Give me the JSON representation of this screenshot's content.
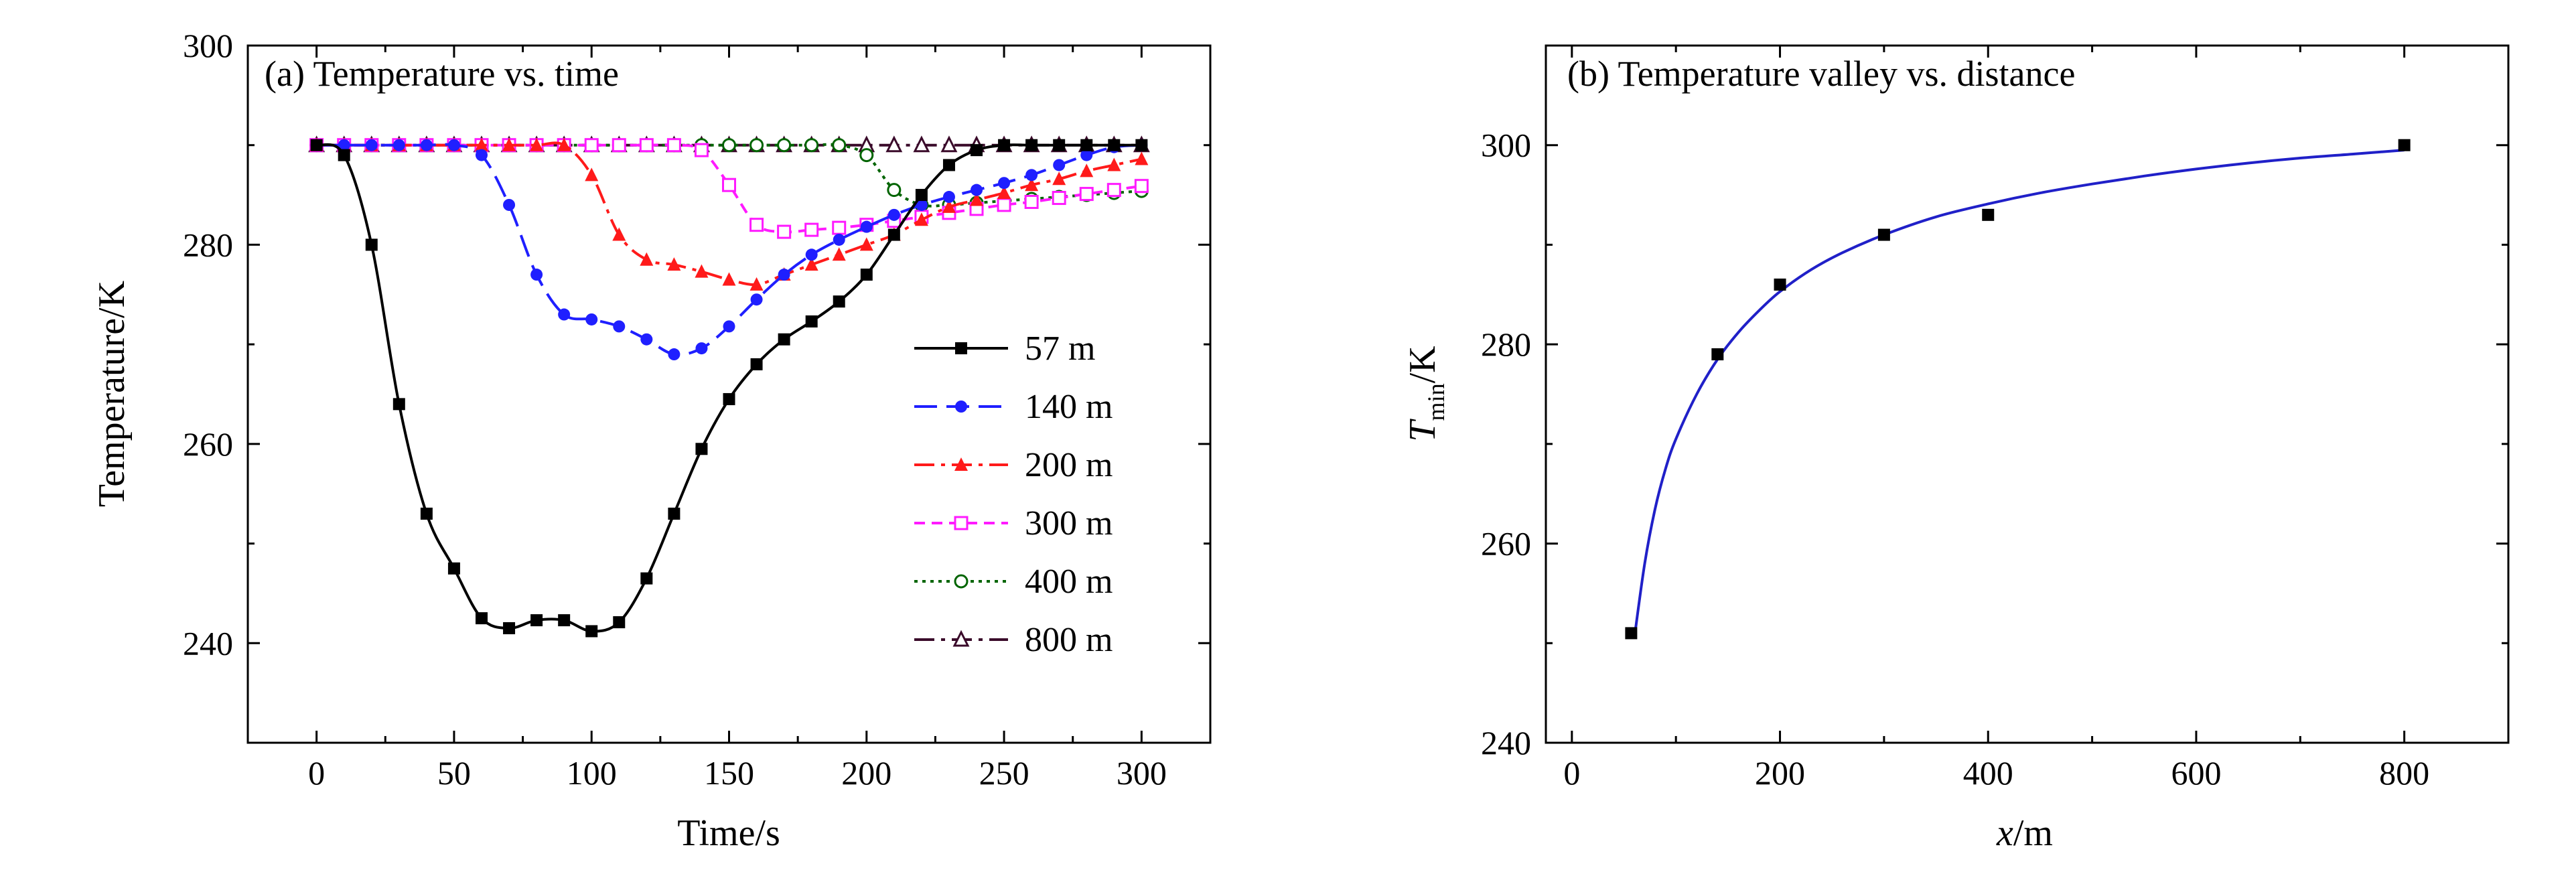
{
  "chart_data": [
    {
      "type": "line",
      "title": "(a) Temperature vs. time",
      "xlabel": "Time/s",
      "ylabel": "Temperature/K",
      "xlim": [
        -25,
        325
      ],
      "ylim": [
        230,
        300
      ],
      "xticks": [
        0,
        50,
        100,
        150,
        200,
        250,
        300
      ],
      "yticks": [
        240,
        260,
        280,
        300
      ],
      "legend_position": "right-middle",
      "series": [
        {
          "name": "57 m",
          "color": "#000000",
          "marker": "square-filled",
          "dash": "solid",
          "points": [
            [
              0,
              290
            ],
            [
              10,
              289
            ],
            [
              20,
              280
            ],
            [
              30,
              264
            ],
            [
              40,
              253
            ],
            [
              50,
              247.5
            ],
            [
              60,
              242.5
            ],
            [
              70,
              241.5
            ],
            [
              80,
              242.3
            ],
            [
              90,
              242.3
            ],
            [
              100,
              241.2
            ],
            [
              110,
              242.1
            ],
            [
              120,
              246.5
            ],
            [
              130,
              253
            ],
            [
              140,
              259.5
            ],
            [
              150,
              264.5
            ],
            [
              160,
              268
            ],
            [
              170,
              270.5
            ],
            [
              180,
              272.3
            ],
            [
              190,
              274.3
            ],
            [
              200,
              277
            ],
            [
              210,
              281
            ],
            [
              220,
              285
            ],
            [
              230,
              288
            ],
            [
              240,
              289.5
            ],
            [
              250,
              290
            ],
            [
              260,
              290
            ],
            [
              270,
              290
            ],
            [
              280,
              290
            ],
            [
              290,
              290
            ],
            [
              300,
              290
            ]
          ]
        },
        {
          "name": "140 m",
          "color": "#1f1fff",
          "marker": "circle-filled",
          "dash": "long-dash",
          "points": [
            [
              0,
              290
            ],
            [
              10,
              290
            ],
            [
              20,
              290
            ],
            [
              30,
              290
            ],
            [
              40,
              290
            ],
            [
              50,
              290
            ],
            [
              60,
              289
            ],
            [
              70,
              284
            ],
            [
              80,
              277
            ],
            [
              90,
              273
            ],
            [
              100,
              272.5
            ],
            [
              110,
              271.8
            ],
            [
              120,
              270.5
            ],
            [
              130,
              269
            ],
            [
              140,
              269.6
            ],
            [
              150,
              271.8
            ],
            [
              160,
              274.5
            ],
            [
              170,
              277
            ],
            [
              180,
              279
            ],
            [
              190,
              280.5
            ],
            [
              200,
              281.8
            ],
            [
              210,
              283
            ],
            [
              220,
              284
            ],
            [
              230,
              284.8
            ],
            [
              240,
              285.5
            ],
            [
              250,
              286.2
            ],
            [
              260,
              287
            ],
            [
              270,
              288
            ],
            [
              280,
              289
            ],
            [
              290,
              289.8
            ],
            [
              300,
              290
            ]
          ]
        },
        {
          "name": "200 m",
          "color": "#ff1a1a",
          "marker": "triangle-filled",
          "dash": "dash-dot",
          "points": [
            [
              0,
              290
            ],
            [
              10,
              290
            ],
            [
              20,
              290
            ],
            [
              30,
              290
            ],
            [
              40,
              290
            ],
            [
              50,
              290
            ],
            [
              60,
              290
            ],
            [
              70,
              290
            ],
            [
              80,
              290
            ],
            [
              90,
              290
            ],
            [
              100,
              287
            ],
            [
              110,
              281
            ],
            [
              120,
              278.5
            ],
            [
              130,
              278
            ],
            [
              140,
              277.3
            ],
            [
              150,
              276.5
            ],
            [
              160,
              276
            ],
            [
              170,
              277
            ],
            [
              180,
              278
            ],
            [
              190,
              279
            ],
            [
              200,
              280
            ],
            [
              210,
              281
            ],
            [
              220,
              282.5
            ],
            [
              230,
              283.8
            ],
            [
              240,
              284.5
            ],
            [
              250,
              285.2
            ],
            [
              260,
              286
            ],
            [
              270,
              286.6
            ],
            [
              280,
              287.4
            ],
            [
              290,
              288
            ],
            [
              300,
              288.6
            ]
          ]
        },
        {
          "name": "300 m",
          "color": "#ff1aff",
          "marker": "square-open",
          "dash": "short-dash",
          "points": [
            [
              0,
              290
            ],
            [
              10,
              290
            ],
            [
              20,
              290
            ],
            [
              30,
              290
            ],
            [
              40,
              290
            ],
            [
              50,
              290
            ],
            [
              60,
              290
            ],
            [
              70,
              290
            ],
            [
              80,
              290
            ],
            [
              90,
              290
            ],
            [
              100,
              290
            ],
            [
              110,
              290
            ],
            [
              120,
              290
            ],
            [
              130,
              290
            ],
            [
              140,
              289.5
            ],
            [
              150,
              286
            ],
            [
              160,
              282
            ],
            [
              170,
              281.3
            ],
            [
              180,
              281.5
            ],
            [
              190,
              281.7
            ],
            [
              200,
              282
            ],
            [
              210,
              282.4
            ],
            [
              220,
              282.8
            ],
            [
              230,
              283.2
            ],
            [
              240,
              283.6
            ],
            [
              250,
              284
            ],
            [
              260,
              284.3
            ],
            [
              270,
              284.7
            ],
            [
              280,
              285.1
            ],
            [
              290,
              285.5
            ],
            [
              300,
              285.9
            ]
          ]
        },
        {
          "name": "400 m",
          "color": "#006400",
          "marker": "circle-open",
          "dash": "dotted",
          "points": [
            [
              0,
              290
            ],
            [
              10,
              290
            ],
            [
              20,
              290
            ],
            [
              30,
              290
            ],
            [
              40,
              290
            ],
            [
              50,
              290
            ],
            [
              60,
              290
            ],
            [
              70,
              290
            ],
            [
              80,
              290
            ],
            [
              90,
              290
            ],
            [
              100,
              290
            ],
            [
              110,
              290
            ],
            [
              120,
              290
            ],
            [
              130,
              290
            ],
            [
              140,
              290
            ],
            [
              150,
              290
            ],
            [
              160,
              290
            ],
            [
              170,
              290
            ],
            [
              180,
              290
            ],
            [
              190,
              290
            ],
            [
              200,
              289
            ],
            [
              210,
              285.5
            ],
            [
              220,
              284
            ],
            [
              230,
              284
            ],
            [
              240,
              284.2
            ],
            [
              250,
              284.4
            ],
            [
              260,
              284.6
            ],
            [
              270,
              284.8
            ],
            [
              280,
              285
            ],
            [
              290,
              285.2
            ],
            [
              300,
              285.4
            ]
          ]
        },
        {
          "name": "800 m",
          "color": "#3a0a2a",
          "marker": "triangle-open",
          "dash": "dash-dot",
          "points": [
            [
              0,
              290
            ],
            [
              10,
              290
            ],
            [
              20,
              290
            ],
            [
              30,
              290
            ],
            [
              40,
              290
            ],
            [
              50,
              290
            ],
            [
              60,
              290
            ],
            [
              70,
              290
            ],
            [
              80,
              290
            ],
            [
              90,
              290
            ],
            [
              100,
              290
            ],
            [
              110,
              290
            ],
            [
              120,
              290
            ],
            [
              130,
              290
            ],
            [
              140,
              290
            ],
            [
              150,
              290
            ],
            [
              160,
              290
            ],
            [
              170,
              290
            ],
            [
              180,
              290
            ],
            [
              190,
              290
            ],
            [
              200,
              290
            ],
            [
              210,
              290
            ],
            [
              220,
              290
            ],
            [
              230,
              290
            ],
            [
              240,
              290
            ],
            [
              250,
              290
            ],
            [
              260,
              290
            ],
            [
              270,
              290
            ],
            [
              280,
              290
            ],
            [
              290,
              290
            ],
            [
              300,
              290
            ]
          ]
        }
      ]
    },
    {
      "type": "scatter",
      "title": "(b) Temperature valley vs. distance",
      "xlabel": "x/m",
      "ylabel": "T_min/K",
      "xlim": [
        -25,
        900
      ],
      "ylim": [
        240,
        310
      ],
      "xticks": [
        0,
        200,
        400,
        600,
        800
      ],
      "yticks": [
        240,
        260,
        280,
        300
      ],
      "points": [
        [
          57,
          251
        ],
        [
          140,
          279
        ],
        [
          200,
          286
        ],
        [
          300,
          291
        ],
        [
          400,
          293
        ],
        [
          800,
          300
        ]
      ],
      "fit_curve": {
        "color": "#2020c8",
        "points": [
          [
            60,
            250.5
          ],
          [
            70,
            258
          ],
          [
            80,
            263.5
          ],
          [
            90,
            267.5
          ],
          [
            100,
            270.5
          ],
          [
            120,
            275
          ],
          [
            140,
            278.5
          ],
          [
            160,
            281.2
          ],
          [
            180,
            283.4
          ],
          [
            200,
            285.3
          ],
          [
            230,
            287.5
          ],
          [
            260,
            289.2
          ],
          [
            300,
            291
          ],
          [
            350,
            292.8
          ],
          [
            400,
            294.1
          ],
          [
            450,
            295.2
          ],
          [
            500,
            296.1
          ],
          [
            550,
            296.9
          ],
          [
            600,
            297.6
          ],
          [
            650,
            298.2
          ],
          [
            700,
            298.7
          ],
          [
            750,
            299.1
          ],
          [
            800,
            299.5
          ]
        ]
      }
    }
  ]
}
